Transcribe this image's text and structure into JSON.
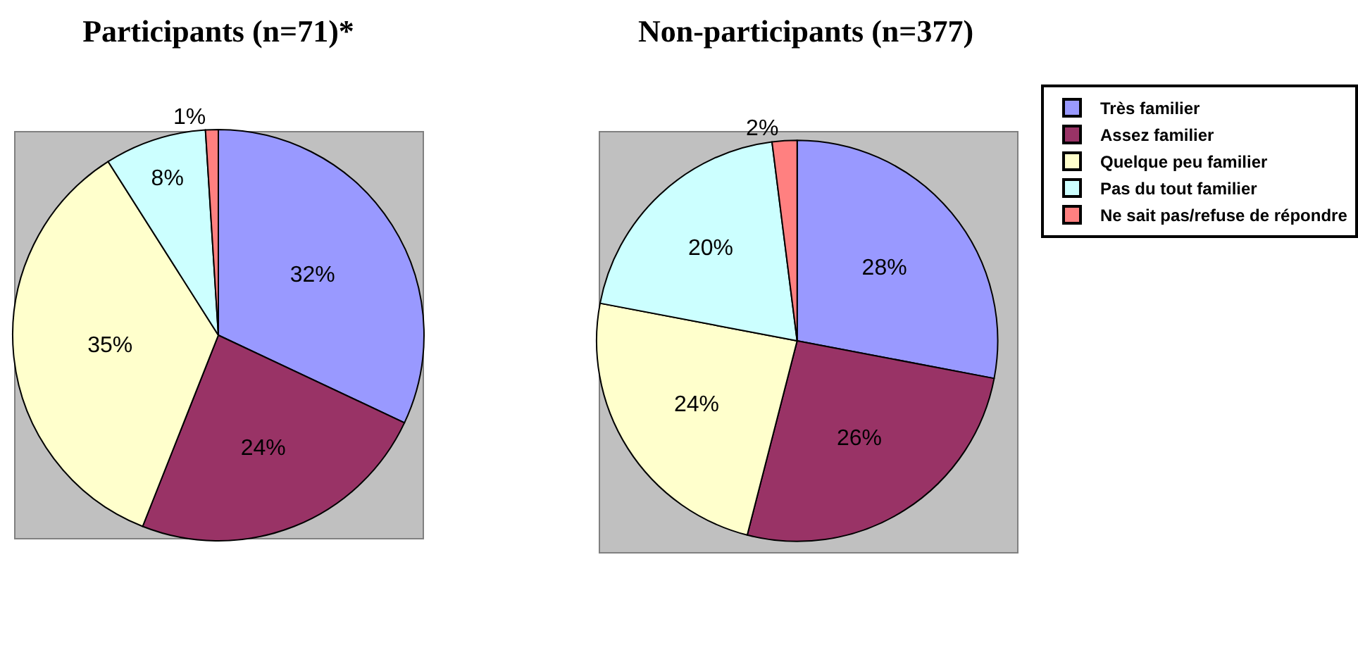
{
  "chart_data": [
    {
      "type": "pie",
      "title": "Participants (n=71)*",
      "categories": [
        null,
        null,
        null,
        null,
        null
      ],
      "values": [
        32,
        24,
        35,
        8,
        1
      ],
      "value_labels": [
        "32%",
        "24%",
        "35%",
        "8%",
        "1%"
      ],
      "colors": [
        "#9999ff",
        "#993366",
        "#ffffcc",
        "#ccffff",
        "#ff8080"
      ]
    },
    {
      "type": "pie",
      "title": "Non-participants (n=377)",
      "categories": [
        "Très familier",
        "Assez familier",
        "Quelque peu familier",
        "Pas du tout familier",
        "Ne sait pas/refuse de répondre"
      ],
      "values": [
        28,
        26,
        24,
        20,
        2
      ],
      "value_labels": [
        "28%",
        "26%",
        "24%",
        "20%",
        "2%"
      ],
      "colors": [
        "#9999ff",
        "#993366",
        "#ffffcc",
        "#ccffff",
        "#ff8080"
      ],
      "legend": "right"
    }
  ]
}
